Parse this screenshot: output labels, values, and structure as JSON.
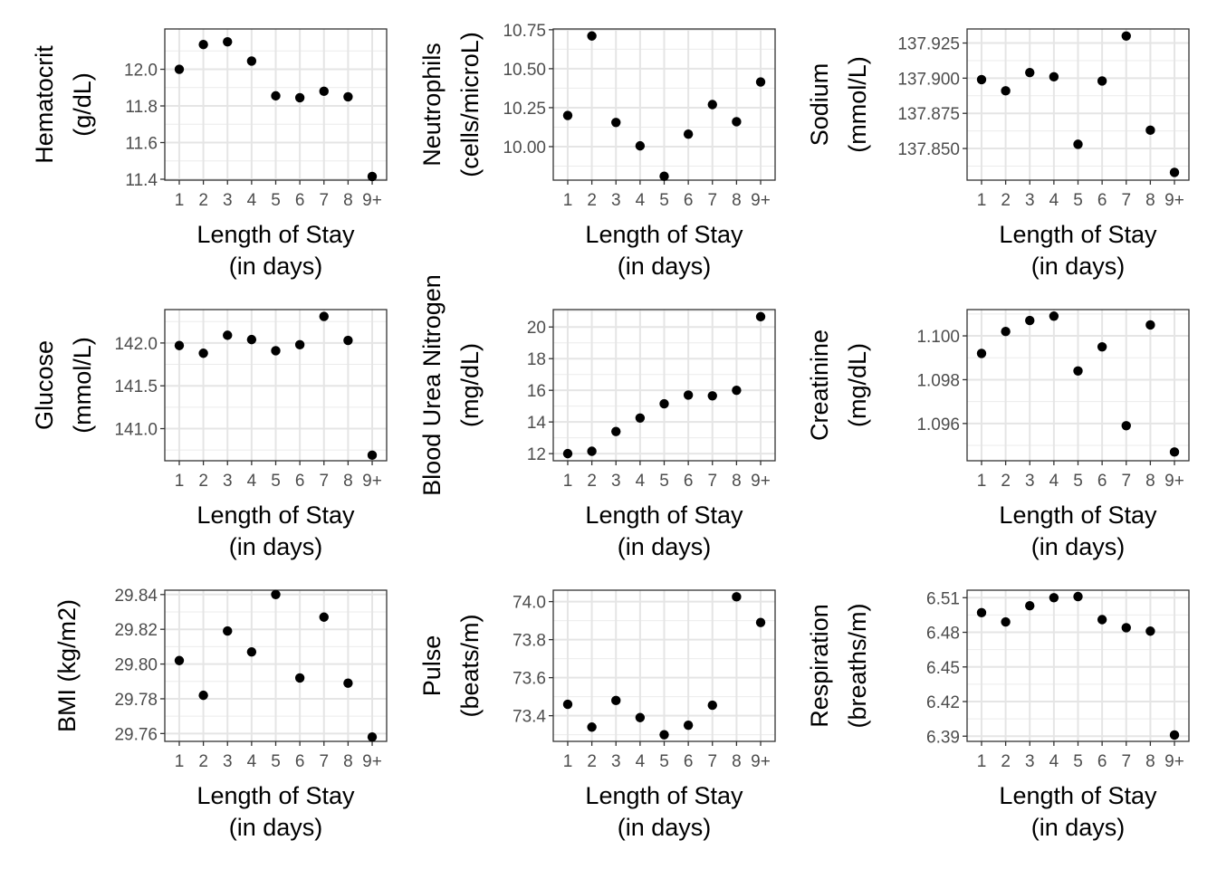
{
  "chart_data": [
    {
      "type": "scatter",
      "ylabel_lines": [
        "Hematocrit",
        "(g/dL)"
      ],
      "xlabel_lines": [
        "Length of Stay",
        "(in days)"
      ],
      "categories": [
        "1",
        "2",
        "3",
        "4",
        "5",
        "6",
        "7",
        "8",
        "9+"
      ],
      "values": [
        12.0,
        12.135,
        12.15,
        12.045,
        11.855,
        11.845,
        11.88,
        11.85,
        11.415
      ],
      "yticks": [
        "11.4",
        "11.6",
        "11.8",
        "12.0"
      ],
      "ylim": [
        11.395,
        12.22
      ],
      "grid": true
    },
    {
      "type": "scatter",
      "ylabel_lines": [
        "Neutrophils",
        "(cells/microL)"
      ],
      "xlabel_lines": [
        "Length of Stay",
        "(in days)"
      ],
      "categories": [
        "1",
        "2",
        "3",
        "4",
        "5",
        "6",
        "7",
        "8",
        "9+"
      ],
      "values": [
        10.2,
        10.71,
        10.155,
        10.005,
        9.81,
        10.08,
        10.27,
        10.16,
        10.415
      ],
      "yticks": [
        "10.00",
        "10.25",
        "10.50",
        "10.75"
      ],
      "ylim": [
        9.785,
        10.755
      ],
      "grid": true
    },
    {
      "type": "scatter",
      "ylabel_lines": [
        "Sodium",
        "(mmol/L)"
      ],
      "xlabel_lines": [
        "Length of Stay",
        "(in days)"
      ],
      "categories": [
        "1",
        "2",
        "3",
        "4",
        "5",
        "6",
        "7",
        "8",
        "9+"
      ],
      "values": [
        137.899,
        137.891,
        137.904,
        137.901,
        137.853,
        137.898,
        137.93,
        137.863,
        137.833
      ],
      "yticks": [
        "137.850",
        "137.875",
        "137.900",
        "137.925"
      ],
      "ylim": [
        137.8275,
        137.935
      ],
      "grid": true
    },
    {
      "type": "scatter",
      "ylabel_lines": [
        "Glucose",
        "(mmol/L)"
      ],
      "xlabel_lines": [
        "Length of Stay",
        "(in days)"
      ],
      "categories": [
        "1",
        "2",
        "3",
        "4",
        "5",
        "6",
        "7",
        "8",
        "9+"
      ],
      "values": [
        141.97,
        141.88,
        142.09,
        142.04,
        141.91,
        141.98,
        142.31,
        142.03,
        140.69
      ],
      "yticks": [
        "141.0",
        "141.5",
        "142.0"
      ],
      "ylim": [
        140.625,
        142.39
      ],
      "grid": true
    },
    {
      "type": "scatter",
      "ylabel_lines": [
        "Blood Urea Nitrogen",
        "(mg/dL)"
      ],
      "xlabel_lines": [
        "Length of Stay",
        "(in days)"
      ],
      "categories": [
        "1",
        "2",
        "3",
        "4",
        "5",
        "6",
        "7",
        "8",
        "9+"
      ],
      "values": [
        12.0,
        12.15,
        13.4,
        14.25,
        15.15,
        15.7,
        15.65,
        16.0,
        20.65
      ],
      "yticks": [
        "12",
        "14",
        "16",
        "18",
        "20"
      ],
      "ylim": [
        11.55,
        21.1
      ],
      "grid": true
    },
    {
      "type": "scatter",
      "ylabel_lines": [
        "Creatinine",
        "(mg/dL)"
      ],
      "xlabel_lines": [
        "Length of Stay",
        "(in days)"
      ],
      "categories": [
        "1",
        "2",
        "3",
        "4",
        "5",
        "6",
        "7",
        "8",
        "9+"
      ],
      "values": [
        1.0992,
        1.1002,
        1.1007,
        1.1009,
        1.0984,
        1.0995,
        1.0959,
        1.1005,
        1.0947
      ],
      "yticks": [
        "1.096",
        "1.098",
        "1.100"
      ],
      "ylim": [
        1.0943,
        1.1012
      ],
      "grid": true
    },
    {
      "type": "scatter",
      "ylabel_lines": [
        "BMI (kg/m2)"
      ],
      "xlabel_lines": [
        "Length of Stay",
        "(in days)"
      ],
      "categories": [
        "1",
        "2",
        "3",
        "4",
        "5",
        "6",
        "7",
        "8",
        "9+"
      ],
      "values": [
        29.802,
        29.782,
        29.819,
        29.807,
        29.84,
        29.792,
        29.827,
        29.789,
        29.758
      ],
      "yticks": [
        "29.76",
        "29.78",
        "29.80",
        "29.82",
        "29.84"
      ],
      "ylim": [
        29.7555,
        29.8425
      ],
      "grid": true
    },
    {
      "type": "scatter",
      "ylabel_lines": [
        "Pulse",
        "(beats/m)"
      ],
      "xlabel_lines": [
        "Length of Stay",
        "(in days)"
      ],
      "categories": [
        "1",
        "2",
        "3",
        "4",
        "5",
        "6",
        "7",
        "8",
        "9+"
      ],
      "values": [
        73.46,
        73.34,
        73.48,
        73.39,
        73.3,
        73.35,
        73.455,
        74.025,
        73.89
      ],
      "yticks": [
        "73.4",
        "73.6",
        "73.8",
        "74.0"
      ],
      "ylim": [
        73.265,
        74.06
      ],
      "grid": true
    },
    {
      "type": "scatter",
      "ylabel_lines": [
        "Respiration",
        "(breaths/m)"
      ],
      "xlabel_lines": [
        "Length of Stay",
        "(in days)"
      ],
      "categories": [
        "1",
        "2",
        "3",
        "4",
        "5",
        "6",
        "7",
        "8",
        "9+"
      ],
      "values": [
        6.497,
        6.489,
        6.503,
        6.51,
        6.511,
        6.491,
        6.484,
        6.481,
        6.391
      ],
      "yticks": [
        "6.39",
        "6.42",
        "6.45",
        "6.48",
        "6.51"
      ],
      "ylim": [
        6.3855,
        6.5165
      ],
      "grid": true
    }
  ]
}
